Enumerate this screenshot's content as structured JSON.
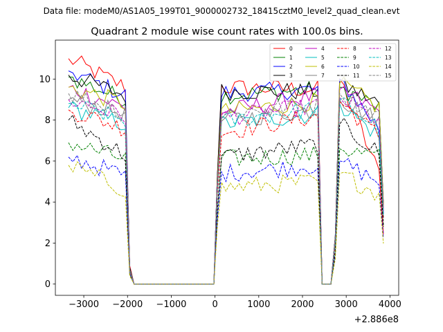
{
  "chart_data": {
    "type": "line",
    "suptitle": "Data file: modeM0/AS1A05_199T01_9000002732_18415cztM0_level2_quad_clean.evt",
    "title": "Quadrant 2 module wise count rates with 100.0s bins.",
    "xlabel": "",
    "ylabel": "",
    "x_offset_label": "+2.886e8",
    "xlim": [
      -3650,
      4200
    ],
    "ylim": [
      -0.55,
      11.9
    ],
    "x_ticks": [
      -3000,
      -2000,
      -1000,
      0,
      1000,
      2000,
      3000,
      4000
    ],
    "x_tick_labels": [
      "−3000",
      "−2000",
      "−1000",
      "0",
      "1000",
      "2000",
      "3000",
      "4000"
    ],
    "y_ticks": [
      0,
      2,
      4,
      6,
      8,
      10
    ],
    "y_tick_labels": [
      "0",
      "2",
      "4",
      "6",
      "8",
      "10"
    ],
    "legend": {
      "location": "top-right",
      "columns": 4,
      "entries": [
        "0",
        "1",
        "2",
        "3",
        "4",
        "5",
        "6",
        "7",
        "8",
        "9",
        "10",
        "11",
        "12",
        "13",
        "14",
        "15"
      ]
    },
    "segments": [
      {
        "x_start": -3350,
        "x_end": -2050,
        "n": 14
      },
      {
        "x_start": 150,
        "x_end": 2350,
        "n": 23
      },
      {
        "x_start": 2850,
        "x_end": 3750,
        "n": 10
      }
    ],
    "gaps": [
      {
        "x": [
          -1950,
          -1850,
          -1700,
          -1500,
          -1300,
          -1100,
          -900,
          -700,
          -500,
          -300,
          -100
        ]
      },
      {
        "x": [
          2450,
          2550,
          2650,
          2750
        ]
      }
    ],
    "series": [
      {
        "name": "0",
        "color": "#ff0000",
        "style": "solid",
        "level": 9.2,
        "seg_start": [
          11.0,
          9.6,
          10.0
        ],
        "seg_end": [
          9.6,
          9.5,
          5.4
        ],
        "edge": [
          0.9,
          0.0,
          0.0
        ]
      },
      {
        "name": "1",
        "color": "#008000",
        "style": "solid",
        "level": 9.3,
        "seg_start": [
          10.1,
          9.2,
          9.6
        ],
        "seg_end": [
          9.0,
          9.5,
          8.6
        ],
        "edge": [
          0.8,
          0.0,
          0.0
        ]
      },
      {
        "name": "2",
        "color": "#0000ff",
        "style": "solid",
        "level": 9.4,
        "seg_start": [
          10.4,
          9.3,
          10.0
        ],
        "seg_end": [
          9.2,
          9.5,
          7.6
        ],
        "edge": [
          0.8,
          0.0,
          0.0
        ]
      },
      {
        "name": "3",
        "color": "#000000",
        "style": "solid",
        "level": 9.3,
        "seg_start": [
          10.2,
          9.4,
          9.8
        ],
        "seg_end": [
          9.2,
          9.4,
          8.8
        ],
        "edge": [
          0.8,
          0.0,
          0.0
        ]
      },
      {
        "name": "4",
        "color": "#bf00bf",
        "style": "solid",
        "level": 8.9,
        "seg_start": [
          9.6,
          8.4,
          9.5
        ],
        "seg_end": [
          8.6,
          9.2,
          8.4
        ],
        "edge": [
          0.7,
          0.0,
          0.0
        ]
      },
      {
        "name": "5",
        "color": "#00bfbf",
        "style": "solid",
        "level": 8.0,
        "seg_start": [
          8.6,
          7.8,
          8.8
        ],
        "seg_end": [
          7.8,
          8.3,
          7.2
        ],
        "edge": [
          0.7,
          0.0,
          0.0
        ]
      },
      {
        "name": "6",
        "color": "#bfbf00",
        "style": "solid",
        "level": 9.0,
        "seg_start": [
          9.6,
          8.4,
          9.8
        ],
        "seg_end": [
          8.8,
          8.9,
          8.6
        ],
        "edge": [
          0.7,
          0.0,
          0.0
        ]
      },
      {
        "name": "7",
        "color": "#808080",
        "style": "solid",
        "level": 8.4,
        "seg_start": [
          9.0,
          8.0,
          9.0
        ],
        "seg_end": [
          8.3,
          8.5,
          8.0
        ],
        "edge": [
          0.7,
          0.0,
          0.0
        ]
      },
      {
        "name": "8",
        "color": "#ff0000",
        "style": "dashed",
        "level": 7.8,
        "seg_start": [
          8.5,
          7.4,
          8.9
        ],
        "seg_end": [
          7.6,
          8.2,
          7.2
        ],
        "edge": [
          0.6,
          0.0,
          0.0
        ]
      },
      {
        "name": "9",
        "color": "#008000",
        "style": "dashed",
        "level": 6.3,
        "seg_start": [
          6.9,
          6.1,
          6.6
        ],
        "seg_end": [
          6.1,
          6.3,
          6.2
        ],
        "edge": [
          0.5,
          0.0,
          0.0
        ]
      },
      {
        "name": "10",
        "color": "#0000ff",
        "style": "dashed",
        "level": 5.6,
        "seg_start": [
          6.2,
          5.4,
          6.0
        ],
        "seg_end": [
          5.3,
          5.8,
          5.0
        ],
        "edge": [
          0.5,
          0.0,
          0.0
        ]
      },
      {
        "name": "11",
        "color": "#000000",
        "style": "dashed",
        "level": 6.4,
        "seg_start": [
          8.0,
          6.2,
          7.8
        ],
        "seg_end": [
          6.3,
          6.8,
          6.4
        ],
        "edge": [
          0.5,
          0.0,
          0.0
        ]
      },
      {
        "name": "12",
        "color": "#bf00bf",
        "style": "dashed",
        "level": 8.5,
        "seg_start": [
          9.0,
          8.1,
          9.1
        ],
        "seg_end": [
          8.2,
          8.7,
          7.9
        ],
        "edge": [
          0.6,
          0.0,
          0.0
        ]
      },
      {
        "name": "13",
        "color": "#00bfbf",
        "style": "dashed",
        "level": 8.2,
        "seg_start": [
          8.8,
          7.9,
          9.0
        ],
        "seg_end": [
          8.0,
          8.6,
          7.6
        ],
        "edge": [
          0.6,
          0.0,
          0.0
        ]
      },
      {
        "name": "14",
        "color": "#bfbf00",
        "style": "dashed",
        "level": 4.9,
        "seg_start": [
          5.8,
          4.7,
          5.4
        ],
        "seg_end": [
          4.6,
          5.0,
          4.4
        ],
        "edge": [
          0.4,
          0.0,
          0.0
        ]
      },
      {
        "name": "15",
        "color": "#808080",
        "style": "dashed",
        "level": 8.7,
        "seg_start": [
          9.3,
          8.3,
          9.3
        ],
        "seg_end": [
          8.4,
          8.8,
          8.2
        ],
        "edge": [
          0.6,
          0.0,
          0.0
        ]
      }
    ]
  }
}
